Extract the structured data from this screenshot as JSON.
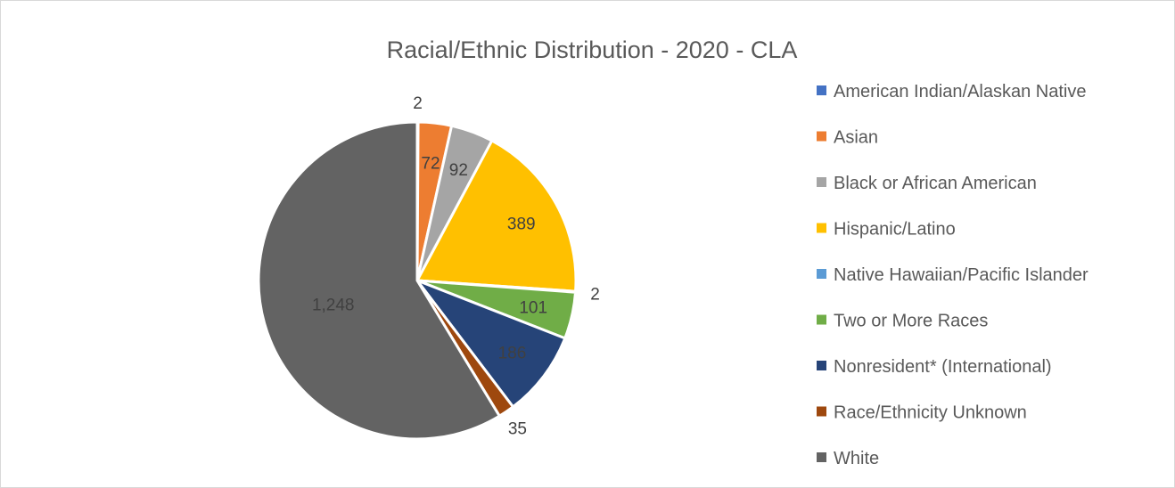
{
  "chart_data": {
    "type": "pie",
    "title": "Racial/Ethnic Distribution - 2020 - CLA",
    "categories": [
      "American Indian/Alaskan Native",
      "Asian",
      "Black or African American",
      "Hispanic/Latino",
      "Native Hawaiian/Pacific Islander",
      "Two or More Races",
      "Nonresident* (International)",
      "Race/Ethnicity Unknown",
      "White"
    ],
    "values": [
      2,
      72,
      92,
      389,
      2,
      101,
      186,
      35,
      1248
    ],
    "data_labels": [
      "2",
      "72",
      "92",
      "389",
      "2",
      "101",
      "186",
      "35",
      "1,248"
    ],
    "colors": [
      "#4472c4",
      "#ed7d31",
      "#a5a5a5",
      "#ffc000",
      "#5b9bd5",
      "#70ad47",
      "#264478",
      "#9e480e",
      "#636363"
    ],
    "legend_position": "right",
    "start_angle": "12 o'clock",
    "direction": "clockwise"
  }
}
